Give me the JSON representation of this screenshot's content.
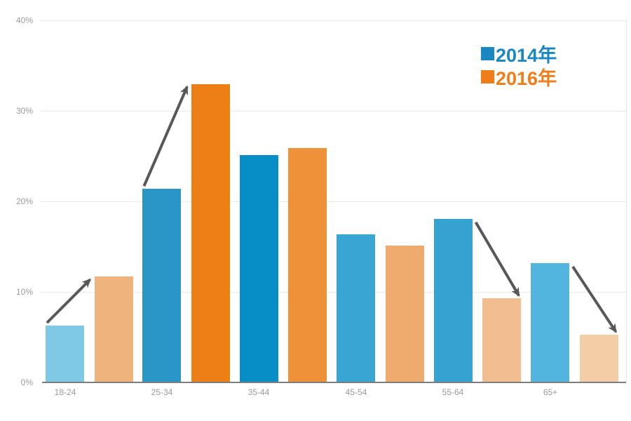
{
  "chart_data": {
    "type": "bar",
    "title": "",
    "xlabel": "",
    "ylabel": "",
    "categories": [
      "18-24",
      "25-34",
      "35-44",
      "45-54",
      "55-64",
      "65+"
    ],
    "series": [
      {
        "name": "2014年",
        "values": [
          6.2,
          21.3,
          25.0,
          16.3,
          18.0,
          13.1
        ],
        "bar_colors": [
          "#7fc8e6",
          "#2a96c8",
          "#088ec6",
          "#38a5d3",
          "#36a2d2",
          "#52b5dd"
        ]
      },
      {
        "name": "2016年",
        "values": [
          11.6,
          32.9,
          25.8,
          15.0,
          9.2,
          5.2
        ],
        "bar_colors": [
          "#efb47e",
          "#ee7f16",
          "#ef9138",
          "#efab6e",
          "#f2bd90",
          "#f3cda6"
        ]
      }
    ],
    "y_axis": {
      "ticks": [
        "0%",
        "10%",
        "20%",
        "30%",
        "40%"
      ],
      "min": 0,
      "max": 40,
      "unit": "%"
    },
    "grid": true,
    "legend_position": "top-right",
    "legend": [
      {
        "label": "2014年",
        "color": "#1a87c2"
      },
      {
        "label": "2016年",
        "color": "#ee7d1a"
      }
    ],
    "annotations": {
      "arrows": [
        {
          "category": "18-24",
          "trend": "up"
        },
        {
          "category": "25-34",
          "trend": "up"
        },
        {
          "category": "55-64",
          "trend": "down"
        },
        {
          "category": "65+",
          "trend": "down"
        }
      ],
      "arrow_color": "#58585a"
    },
    "style_colors": {
      "axis_line": "#7d7d7d",
      "gridline": "#e9e9e9",
      "tick_text": "#9b9b9b",
      "plot_right_border": "#e7e7e7"
    }
  }
}
